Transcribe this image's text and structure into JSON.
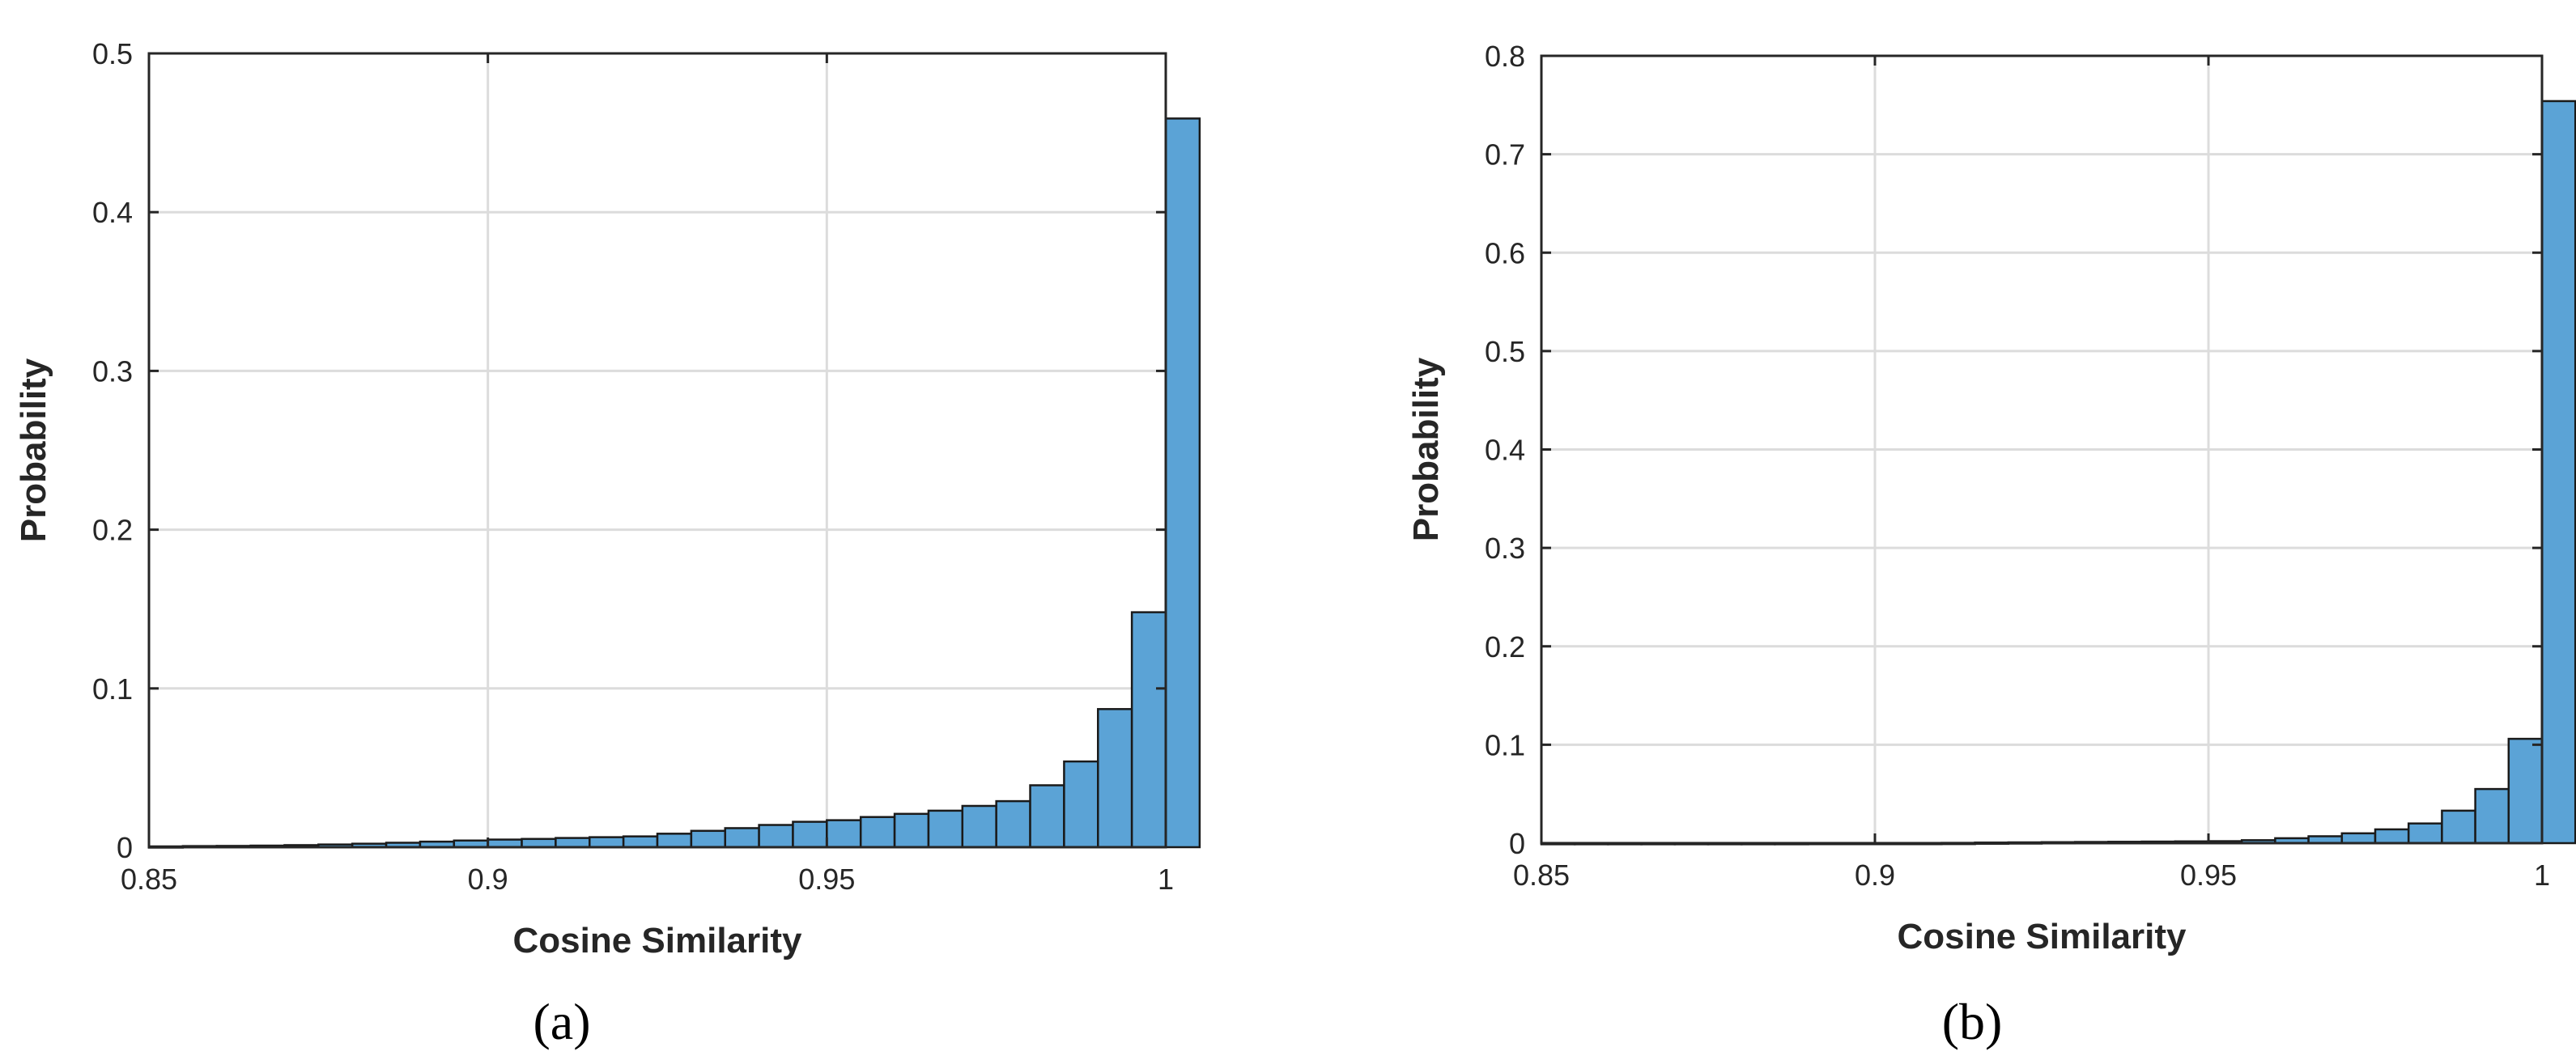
{
  "figure": {
    "captions": [
      "(a)",
      "(b)"
    ],
    "bar_color": "#5ba3d6",
    "bar_edge": "#1a1a1a",
    "grid_color": "#dcdcdc"
  },
  "chart_data": [
    {
      "type": "bar",
      "panel": "a",
      "caption": "(a)",
      "xlabel": "Cosine Similarity",
      "ylabel": "Probability",
      "xlim": [
        0.85,
        1
      ],
      "ylim": [
        0,
        0.5
      ],
      "xticks": [
        0.85,
        0.9,
        0.95,
        1
      ],
      "xtick_labels": [
        "0.85",
        "0.9",
        "0.95",
        "1"
      ],
      "yticks": [
        0,
        0.1,
        0.2,
        0.3,
        0.4,
        0.5
      ],
      "ytick_labels": [
        "0",
        "0.1",
        "0.2",
        "0.3",
        "0.4",
        "0.5"
      ],
      "grid": true,
      "bin_edges_start": 0.85,
      "bin_width": 0.005,
      "values": [
        0.0005,
        0.0007,
        0.0008,
        0.001,
        0.0013,
        0.0017,
        0.0022,
        0.0028,
        0.0035,
        0.0042,
        0.0048,
        0.0052,
        0.0058,
        0.0063,
        0.0068,
        0.0085,
        0.0103,
        0.012,
        0.014,
        0.016,
        0.017,
        0.019,
        0.021,
        0.023,
        0.026,
        0.029,
        0.039,
        0.054,
        0.087,
        0.148,
        0.459
      ]
    },
    {
      "type": "bar",
      "panel": "b",
      "caption": "(b)",
      "xlabel": "Cosine Similarity",
      "ylabel": "Probability",
      "xlim": [
        0.85,
        1
      ],
      "ylim": [
        0,
        0.8
      ],
      "xticks": [
        0.85,
        0.9,
        0.95,
        1
      ],
      "xtick_labels": [
        "0.85",
        "0.9",
        "0.95",
        "1"
      ],
      "yticks": [
        0,
        0.1,
        0.2,
        0.3,
        0.4,
        0.5,
        0.6,
        0.7,
        0.8
      ],
      "ytick_labels": [
        "0",
        "0.1",
        "0.2",
        "0.3",
        "0.4",
        "0.5",
        "0.6",
        "0.7",
        "0.8"
      ],
      "grid": true,
      "bin_edges_start": 0.85,
      "bin_width": 0.005,
      "values": [
        0.0001,
        0.0001,
        0.0001,
        0.0001,
        0.0001,
        0.0001,
        0.0001,
        0.0001,
        0.0002,
        0.0002,
        0.0002,
        0.0002,
        0.0003,
        0.0006,
        0.0008,
        0.001,
        0.0012,
        0.0014,
        0.0016,
        0.0018,
        0.002,
        0.003,
        0.005,
        0.007,
        0.01,
        0.014,
        0.02,
        0.033,
        0.055,
        0.106,
        0.754
      ]
    }
  ]
}
